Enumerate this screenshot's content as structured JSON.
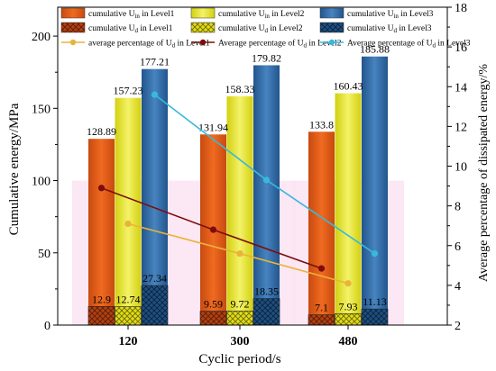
{
  "chart_data": {
    "type": "bar",
    "title": "",
    "xlabel": "Cyclic period/s",
    "ylabel": "Cumulative energy/MPa",
    "y2label": "Average percentage of dissipated energy/%",
    "categories": [
      "120",
      "300",
      "480"
    ],
    "ylim": [
      0,
      220
    ],
    "yticks": [
      0,
      50,
      100,
      150,
      200
    ],
    "y2lim": [
      2,
      18
    ],
    "y2ticks": [
      2,
      4,
      6,
      8,
      10,
      12,
      14,
      16,
      18
    ],
    "legend_position": "top",
    "bar_series": [
      {
        "key": "uin1",
        "legend": [
          "cumulative U",
          "in",
          " in  Level1"
        ],
        "values": [
          128.89,
          131.94,
          133.8
        ],
        "labels": [
          "128.89",
          "131.94",
          "133.8"
        ],
        "color": "#e45a17",
        "group": 0
      },
      {
        "key": "uin2",
        "legend": [
          "cumulative U",
          "in",
          " in  Level2"
        ],
        "values": [
          157.23,
          158.33,
          160.43
        ],
        "labels": [
          "157.23",
          "158.33",
          "160.43"
        ],
        "color": "#e7e62e",
        "group": 1
      },
      {
        "key": "uin3",
        "legend": [
          "cumulative U",
          "in",
          " in  Level3"
        ],
        "values": [
          177.21,
          179.82,
          185.88
        ],
        "labels": [
          "177.21",
          "179.82",
          "185.88"
        ],
        "color": "#2f6aa5",
        "group": 2
      },
      {
        "key": "ud1",
        "legend": [
          "cumulative U",
          "d",
          " in  Level1"
        ],
        "values": [
          12.9,
          9.59,
          7.1
        ],
        "labels": [
          "12.9",
          "9.59",
          "7.1"
        ],
        "color": "#b24012",
        "group": 0,
        "hatch": true
      },
      {
        "key": "ud2",
        "legend": [
          "cumulative U",
          "d",
          " in Level2"
        ],
        "values": [
          12.74,
          9.72,
          7.93
        ],
        "labels": [
          "12.74",
          "9.72",
          "7.93"
        ],
        "color": "#e0dc1c",
        "group": 1,
        "hatch": true
      },
      {
        "key": "ud3",
        "legend": [
          "cumulative U",
          "d",
          " in Level3"
        ],
        "values": [
          27.34,
          18.35,
          11.13
        ],
        "labels": [
          "27.34",
          "18.35",
          "11.13"
        ],
        "color": "#1f4f7f",
        "group": 2,
        "hatch": true
      }
    ],
    "line_series": [
      {
        "key": "avg1",
        "legend": [
          "average percentage of U",
          "d",
          " in  Level1"
        ],
        "values": [
          7.1,
          5.6,
          4.1
        ],
        "color": "#e8b43a",
        "group": 1
      },
      {
        "key": "avg2",
        "legend": [
          "Average percentage of U",
          "d",
          " in Level2"
        ],
        "values": [
          8.9,
          6.8,
          4.85
        ],
        "color": "#7b0d0d",
        "group": 0
      },
      {
        "key": "avg3",
        "legend": [
          "Average percentage of U",
          "d",
          " in  Level3"
        ],
        "values": [
          13.6,
          9.3,
          5.6
        ],
        "color": "#38b9dc",
        "group": 2
      }
    ],
    "band_value": 100,
    "band_color": "#fbe3f2"
  }
}
